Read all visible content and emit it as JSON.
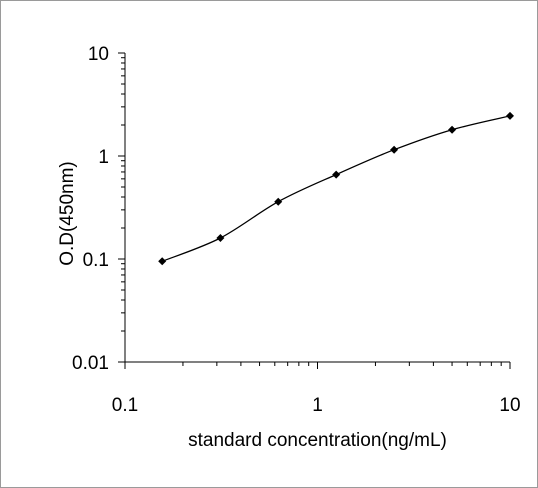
{
  "chart_data": {
    "type": "line",
    "title": "",
    "xlabel": "standard concentration(ng/mL)",
    "ylabel": "O.D(450nm)",
    "x_scale": "log",
    "y_scale": "log",
    "xlim": [
      0.1,
      10
    ],
    "ylim": [
      0.01,
      10
    ],
    "x_ticks": [
      "0.1",
      "1",
      "10"
    ],
    "y_ticks": [
      "0.01",
      "0.1",
      "1",
      "10"
    ],
    "grid": false,
    "legend": "none",
    "marker": "diamond",
    "line_color": "#000000",
    "series": [
      {
        "x": [
          0.156,
          0.313,
          0.625,
          1.25,
          2.5,
          5,
          10
        ],
        "y": [
          0.095,
          0.16,
          0.36,
          0.66,
          1.15,
          1.8,
          2.45
        ]
      }
    ]
  }
}
